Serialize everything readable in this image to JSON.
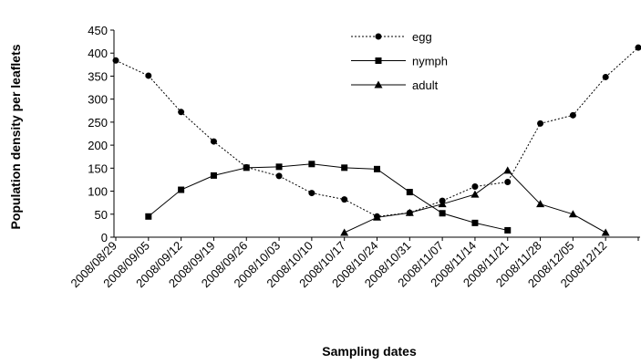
{
  "chart_data": {
    "type": "line",
    "x_label": "Sampling dates",
    "y_label": "Population density per leaflets",
    "categories": [
      "2008/08/29",
      "2008/09/05",
      "2008/09/12",
      "2008/09/19",
      "2008/09/26",
      "2008/10/03",
      "2008/10/10",
      "2008/10/17",
      "2008/10/24",
      "2008/10/31",
      "2008/11/07",
      "2008/11/14",
      "2008/11/21",
      "2008/11/28",
      "2008/12/05",
      "2008/12/12",
      null
    ],
    "series": [
      {
        "name": "egg",
        "color": "#000000",
        "marker": "circle",
        "dash": "dotted",
        "values": [
          384,
          351,
          272,
          208,
          152,
          133,
          96,
          82,
          45,
          53,
          79,
          110,
          120,
          247,
          265,
          348,
          412
        ]
      },
      {
        "name": "nymph",
        "color": "#000000",
        "marker": "square",
        "dash": "solid",
        "values": [
          null,
          45,
          103,
          134,
          151,
          153,
          159,
          151,
          148,
          98,
          52,
          31,
          15,
          null,
          null,
          null,
          null
        ]
      },
      {
        "name": "adult",
        "color": "#000000",
        "marker": "triangle",
        "dash": "solid",
        "values": [
          null,
          null,
          null,
          null,
          null,
          null,
          null,
          10,
          43,
          53,
          72,
          93,
          145,
          72,
          50,
          10,
          null
        ]
      }
    ],
    "ylim": [
      0,
      450
    ],
    "yticks": [
      0,
      50,
      100,
      150,
      200,
      250,
      300,
      350,
      400,
      450
    ],
    "legend": "top"
  }
}
